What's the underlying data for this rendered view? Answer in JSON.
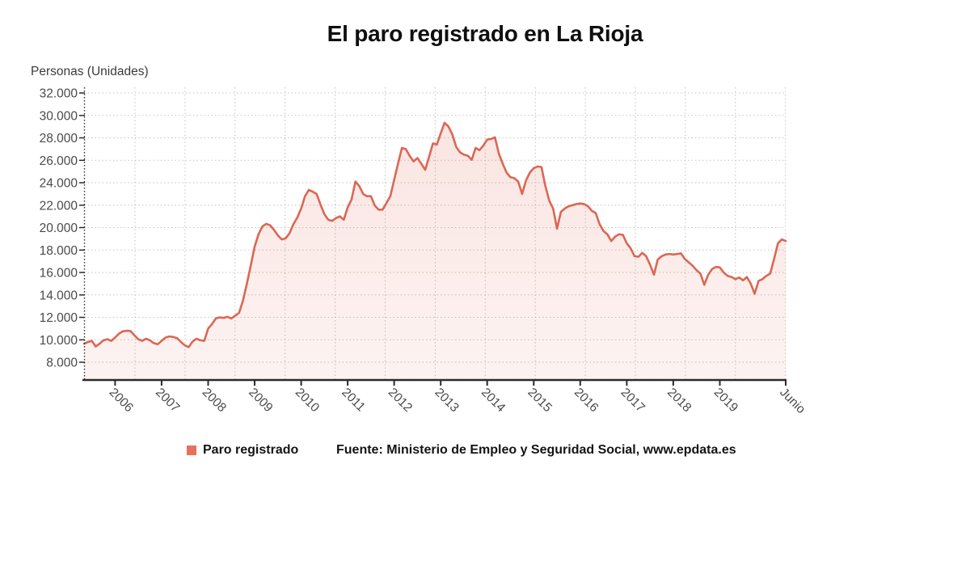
{
  "title": "El paro registrado en La Rioja",
  "y_axis_unit": "Personas (Unidades)",
  "legend": {
    "label": "Paro registrado",
    "color": "#e8715c"
  },
  "source": "Fuente: Ministerio de Empleo y Seguridad Social, www.epdata.es",
  "chart_data": {
    "type": "area",
    "title": "El paro registrado en La Rioja",
    "ylabel": "Personas (Unidades)",
    "series_name": "Paro registrado",
    "frequency": "monthly",
    "start_month": "2005-05",
    "end_month": "2020-06",
    "ylim": [
      8000,
      32000
    ],
    "grid": true,
    "legend_position": "bottom",
    "line_color": "#db6753",
    "fill_top": "rgba(224,101,81,0.17)",
    "fill_bottom": "rgba(224,101,81,0.08)",
    "axis_color": "#2b2b2b",
    "grid_color": "#c3c3c3",
    "y_tick_values": [
      32000,
      30000,
      28000,
      26000,
      24000,
      22000,
      20000,
      18000,
      16000,
      14000,
      12000,
      10000,
      8000
    ],
    "y_tick_labels": [
      "32.000",
      "30.000",
      "28.000",
      "26.000",
      "24.000",
      "22.000",
      "20.000",
      "18.000",
      "16.000",
      "14.000",
      "12.000",
      "10.000",
      "8.000"
    ],
    "x_ticks": [
      {
        "label": "2006",
        "i": 8
      },
      {
        "label": "2007",
        "i": 20
      },
      {
        "label": "2008",
        "i": 32
      },
      {
        "label": "2009",
        "i": 44
      },
      {
        "label": "2010",
        "i": 56
      },
      {
        "label": "2011",
        "i": 68
      },
      {
        "label": "2012",
        "i": 80
      },
      {
        "label": "2013",
        "i": 92
      },
      {
        "label": "2014",
        "i": 104
      },
      {
        "label": "2015",
        "i": 116
      },
      {
        "label": "2016",
        "i": 128
      },
      {
        "label": "2017",
        "i": 140
      },
      {
        "label": "2018",
        "i": 152
      },
      {
        "label": "2019",
        "i": 164
      },
      {
        "label": "Junio",
        "i": 181
      }
    ],
    "values": [
      9650,
      9800,
      9900,
      9400,
      9650,
      9950,
      10050,
      9900,
      10200,
      10550,
      10750,
      10800,
      10780,
      10400,
      10050,
      9900,
      10100,
      9950,
      9700,
      9600,
      9900,
      10200,
      10300,
      10250,
      10150,
      9800,
      9500,
      9350,
      9850,
      10100,
      9950,
      9900,
      11000,
      11400,
      11900,
      12000,
      11950,
      12050,
      11900,
      12150,
      12400,
      13500,
      15000,
      16600,
      18300,
      19400,
      20100,
      20340,
      20200,
      19800,
      19300,
      18950,
      19050,
      19500,
      20300,
      20900,
      21700,
      22800,
      23360,
      23200,
      23000,
      22050,
      21200,
      20700,
      20600,
      20850,
      21000,
      20700,
      21800,
      22500,
      24100,
      23700,
      23000,
      22800,
      22800,
      21950,
      21600,
      21600,
      22200,
      22800,
      24250,
      25700,
      27100,
      27000,
      26400,
      25900,
      26200,
      25700,
      25150,
      26300,
      27500,
      27400,
      28400,
      29350,
      29000,
      28300,
      27200,
      26700,
      26500,
      26400,
      26050,
      27100,
      26900,
      27300,
      27850,
      27900,
      28050,
      26600,
      25700,
      24900,
      24500,
      24400,
      24100,
      23000,
      24200,
      24900,
      25300,
      25450,
      25400,
      23700,
      22400,
      21700,
      19900,
      21400,
      21700,
      21900,
      22000,
      22100,
      22150,
      22100,
      21900,
      21500,
      21300,
      20300,
      19700,
      19400,
      18800,
      19200,
      19400,
      19350,
      18600,
      18150,
      17450,
      17400,
      17750,
      17450,
      16700,
      15800,
      17150,
      17450,
      17600,
      17650,
      17600,
      17650,
      17700,
      17200,
      16900,
      16600,
      16200,
      15900,
      14900,
      15800,
      16300,
      16500,
      16450,
      16000,
      15700,
      15600,
      15400,
      15550,
      15300,
      15600,
      15000,
      14100,
      15250,
      15400,
      15700,
      15900,
      17200,
      18600,
      18950,
      18800
    ]
  }
}
